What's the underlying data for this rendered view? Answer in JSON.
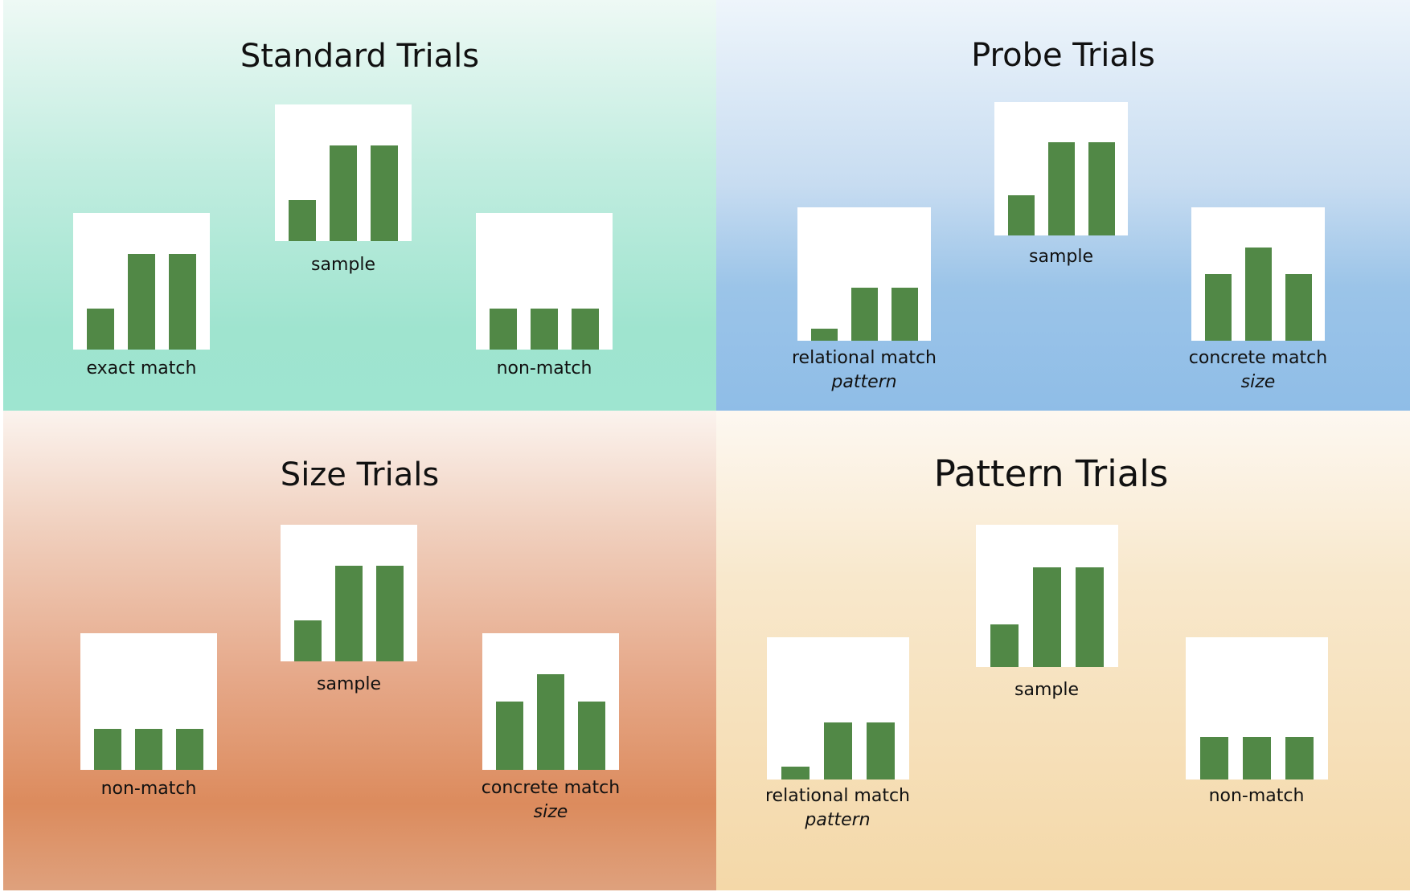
{
  "colors": {
    "bar": "#518846",
    "panel": "#ffffff",
    "standard_bg": "#9ee5d0",
    "probe_bg": "#8fbde7",
    "size_bg": "#dc8b5d",
    "pattern_bg": "#f4d8a8"
  },
  "quadrants": {
    "standard": {
      "title": "Standard Trials",
      "left": {
        "label": "exact match",
        "bars": [
          0.3,
          0.7,
          0.7
        ]
      },
      "center": {
        "label": "sample",
        "bars": [
          0.3,
          0.7,
          0.7
        ]
      },
      "right": {
        "label": "non-match",
        "bars": [
          0.3,
          0.3,
          0.3
        ]
      }
    },
    "probe": {
      "title": "Probe Trials",
      "left": {
        "label": "relational match",
        "sublabel": "pattern",
        "bars": [
          0.09,
          0.4,
          0.4
        ]
      },
      "center": {
        "label": "sample",
        "bars": [
          0.3,
          0.7,
          0.7
        ]
      },
      "right": {
        "label": "concrete match",
        "sublabel": "size",
        "bars": [
          0.5,
          0.7,
          0.5
        ]
      }
    },
    "size": {
      "title": "Size Trials",
      "left": {
        "label": "non-match",
        "bars": [
          0.3,
          0.3,
          0.3
        ]
      },
      "center": {
        "label": "sample",
        "bars": [
          0.3,
          0.7,
          0.7
        ]
      },
      "right": {
        "label": "concrete match",
        "sublabel": "size",
        "bars": [
          0.5,
          0.7,
          0.5
        ]
      }
    },
    "pattern": {
      "title": "Pattern Trials",
      "left": {
        "label": "relational match",
        "sublabel": "pattern",
        "bars": [
          0.09,
          0.4,
          0.4
        ]
      },
      "center": {
        "label": "sample",
        "bars": [
          0.3,
          0.7,
          0.7
        ]
      },
      "right": {
        "label": "non-match",
        "bars": [
          0.3,
          0.3,
          0.3
        ]
      }
    }
  }
}
